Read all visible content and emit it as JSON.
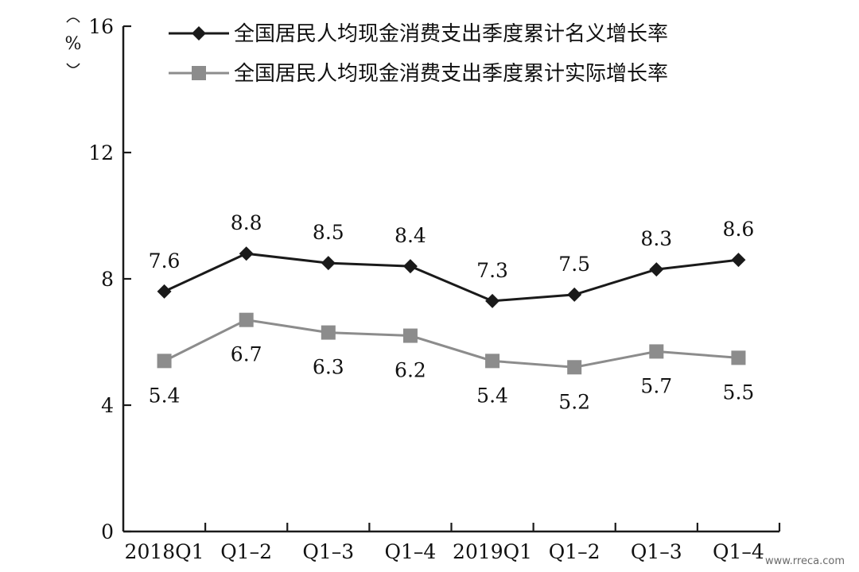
{
  "chart_data": {
    "type": "line",
    "title": "",
    "xlabel": "",
    "ylabel": "%",
    "ylim": [
      0,
      16
    ],
    "yticks": [
      0,
      4,
      8,
      12,
      16
    ],
    "categories": [
      "2018Q1",
      "Q1–2",
      "Q1–3",
      "Q1–4",
      "2019Q1",
      "Q1–2",
      "Q1–3",
      "Q1–4"
    ],
    "grid": false,
    "legend": "top",
    "series": [
      {
        "name": "全国居民人均现金消费支出季度累计名义增长率",
        "values": [
          7.6,
          8.8,
          8.5,
          8.4,
          7.3,
          7.5,
          8.3,
          8.6
        ],
        "color": "#1a1a1a",
        "marker": "diamond",
        "label_position": "above"
      },
      {
        "name": "全国居民人均现金消费支出季度累计实际增长率",
        "values": [
          5.4,
          6.7,
          6.3,
          6.2,
          5.4,
          5.2,
          5.7,
          5.5
        ],
        "color": "#8c8c8c",
        "marker": "square",
        "label_position": "below"
      }
    ]
  },
  "watermark": "www.rreca.com"
}
